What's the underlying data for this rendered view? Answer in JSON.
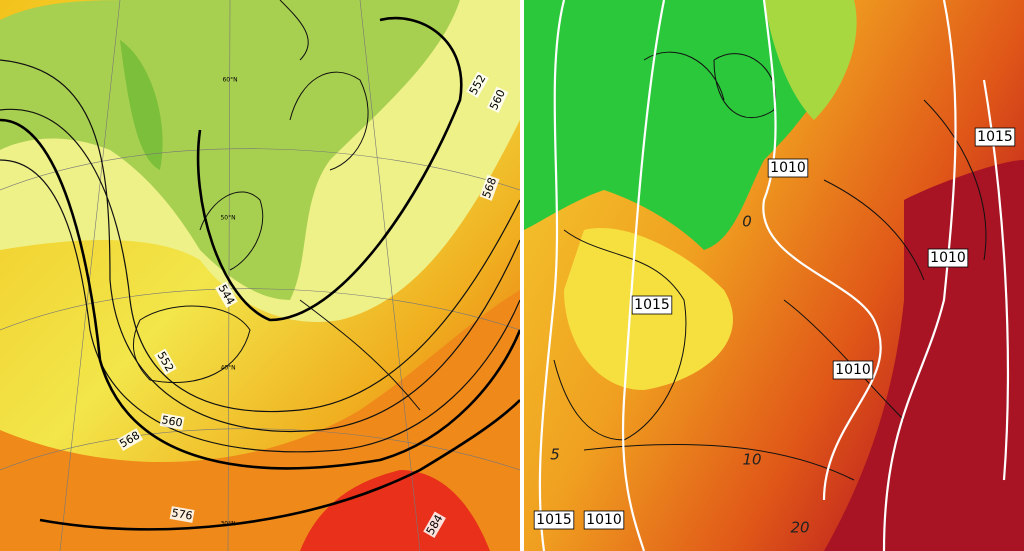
{
  "left_panel": {
    "contour_labels": [
      "552",
      "560",
      "568",
      "544",
      "552",
      "560",
      "568",
      "576",
      "584"
    ],
    "latitude_labels": [
      "60°N",
      "50°N",
      "40°N",
      "30°N"
    ]
  },
  "right_panel": {
    "isobar_labels": [
      "1010",
      "1015",
      "1010",
      "1015",
      "1010",
      "1015",
      "1010"
    ],
    "temperature_labels": [
      "5",
      "10",
      "20",
      "0"
    ]
  }
}
